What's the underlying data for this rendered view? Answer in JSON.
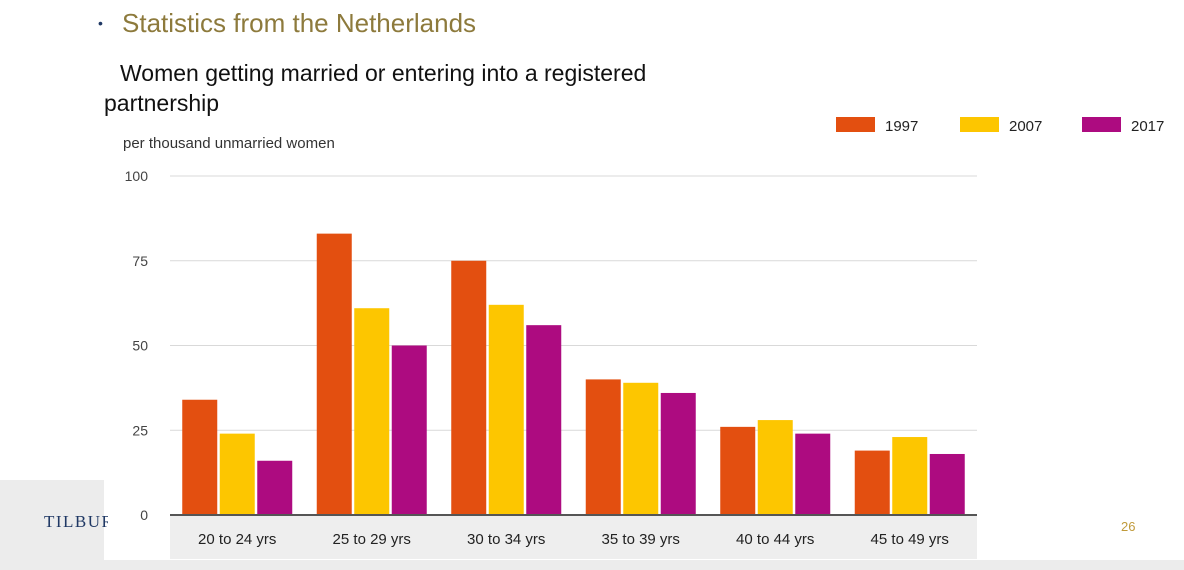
{
  "slide": {
    "bullet": "•",
    "title": "Statistics from the Netherlands",
    "logo_text": "TILBURG",
    "page_number": "26"
  },
  "colors": {
    "title": "#8d7a3c",
    "series_1997": "#e34f10",
    "series_2007": "#fdc600",
    "series_2017": "#ad0b80",
    "gridline": "#d9d9d9",
    "baseline": "#555555",
    "category_band": "#eeeeee"
  },
  "chart_data": {
    "type": "bar",
    "title": "Women getting married or entering into a registered partnership",
    "ylabel": "per thousand unmarried women",
    "xlabel": "",
    "categories": [
      "20 to 24 yrs",
      "25 to 29 yrs",
      "30 to 34 yrs",
      "35 to 39 yrs",
      "40 to 44 yrs",
      "45 to 49 yrs"
    ],
    "series": [
      {
        "name": "1997",
        "color": "#e34f10",
        "values": [
          34,
          83,
          75,
          40,
          26,
          19
        ]
      },
      {
        "name": "2007",
        "color": "#fdc600",
        "values": [
          24,
          61,
          62,
          39,
          28,
          23
        ]
      },
      {
        "name": "2017",
        "color": "#ad0b80",
        "values": [
          16,
          50,
          56,
          36,
          24,
          18
        ]
      }
    ],
    "ylim": [
      0,
      100
    ],
    "yticks": [
      0,
      25,
      50,
      75,
      100
    ],
    "grid": true,
    "legend": "top-right"
  }
}
